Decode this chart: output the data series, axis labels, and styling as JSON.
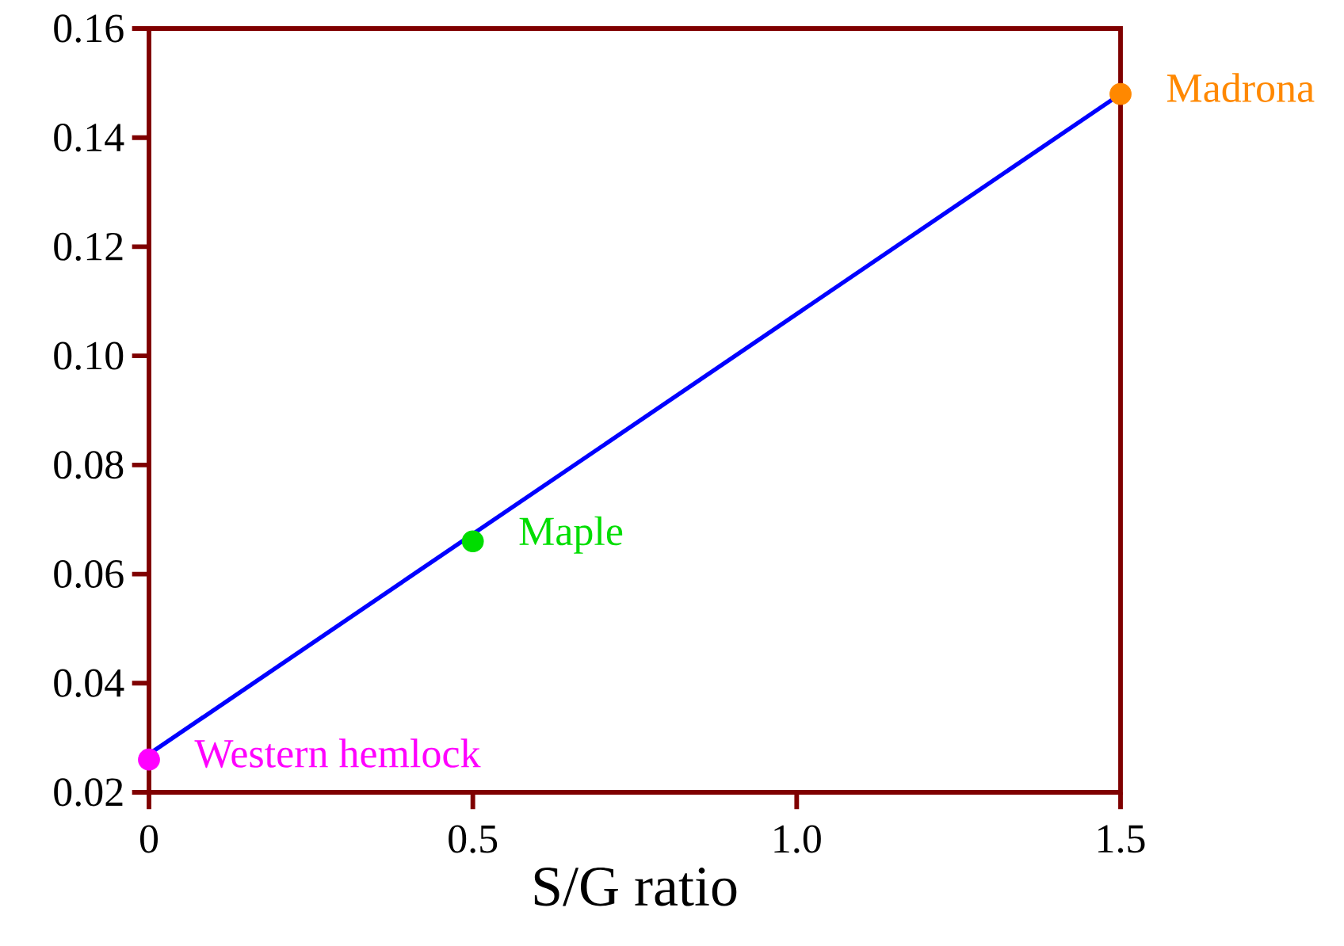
{
  "chart_data": {
    "type": "scatter",
    "xlabel": "S/G ratio",
    "xlim": [
      0,
      1.5
    ],
    "ylim": [
      0.02,
      0.16
    ],
    "xticks": [
      {
        "value": 0,
        "label": "0"
      },
      0.5,
      {
        "value": 1.0,
        "label": "1.0"
      },
      1.5
    ],
    "yticks": [
      0.02,
      0.04,
      0.06,
      0.08,
      {
        "value": 0.1,
        "label": "0.10"
      },
      0.12,
      0.14,
      0.16
    ],
    "grid": false,
    "legend": false,
    "series": [
      {
        "type": "line",
        "color": "#0000ff",
        "x": [
          0,
          1.5
        ],
        "values": [
          0.027,
          0.148
        ],
        "marker": "none"
      },
      {
        "name": "Western hemlock",
        "color": "#ff00ff",
        "x": [
          0
        ],
        "values": [
          0.026
        ],
        "marker": "circle"
      },
      {
        "name": "Maple",
        "color": "#00dd00",
        "x": [
          0.5
        ],
        "values": [
          0.066
        ],
        "marker": "circle"
      },
      {
        "name": "Madrona",
        "color": "#ff8800",
        "x": [
          1.5
        ],
        "values": [
          0.148
        ],
        "marker": "circle"
      }
    ]
  }
}
